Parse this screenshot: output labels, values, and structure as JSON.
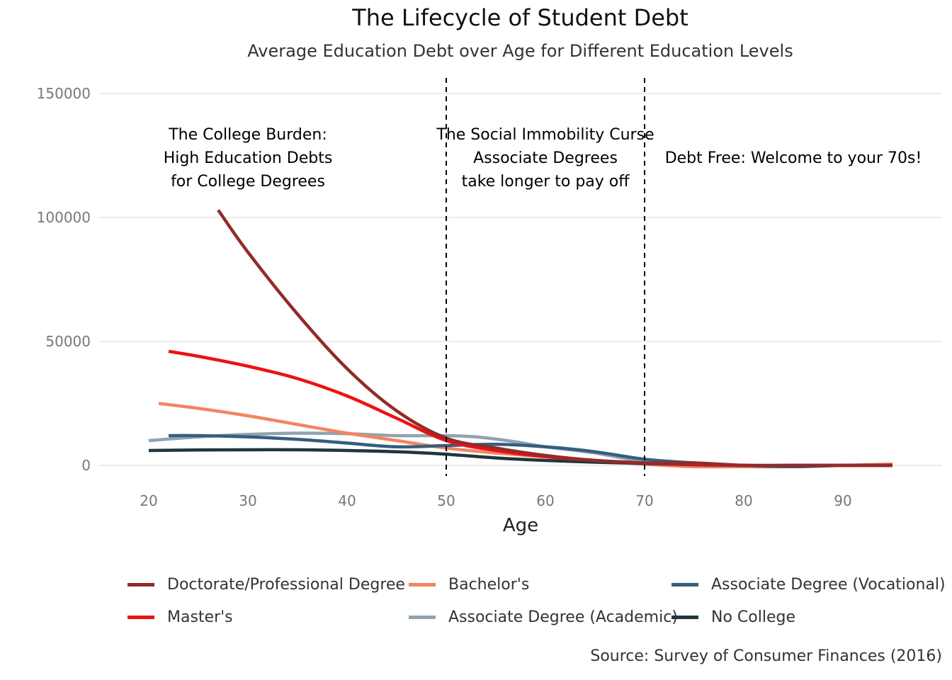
{
  "chart_data": {
    "type": "line",
    "title": "The Lifecycle of Student Debt",
    "subtitle": "Average Education Debt over Age for Different Education Levels",
    "xlabel": "Age",
    "ylabel": "",
    "xlim": [
      15,
      100
    ],
    "ylim": [
      0,
      150000
    ],
    "xticks": [
      20,
      30,
      40,
      50,
      60,
      70,
      80,
      90
    ],
    "yticks": [
      0,
      50000,
      100000,
      150000
    ],
    "grid": true,
    "legend_position": "bottom",
    "vlines": [
      50,
      70
    ],
    "caption": "Source: Survey of Consumer Finances (2016)",
    "annotations": [
      {
        "x": 30,
        "y": 123000,
        "lines": [
          "The College Burden:",
          "High Education Debts",
          "for College Degrees"
        ]
      },
      {
        "x": 60,
        "y": 123000,
        "lines": [
          "The Social Immobility Curse",
          "Associate Degrees",
          "take longer to pay off"
        ]
      },
      {
        "x": 85,
        "y": 123000,
        "lines": [
          "Debt Free: Welcome to your 70s!"
        ]
      }
    ],
    "series": [
      {
        "name": "Doctorate/Professional Degree",
        "color": "#922B2B",
        "x": [
          27,
          30,
          35,
          40,
          45,
          50,
          55,
          60,
          65,
          70,
          75,
          80,
          85,
          90,
          95
        ],
        "y": [
          103000,
          86000,
          61000,
          39000,
          22000,
          11000,
          7000,
          4000,
          2000,
          1000,
          1000,
          0,
          0,
          0,
          0
        ]
      },
      {
        "name": "Master's",
        "color": "#EE1111",
        "x": [
          22,
          25,
          30,
          35,
          40,
          45,
          50,
          55,
          60,
          65,
          70,
          75,
          80,
          85,
          90,
          95
        ],
        "y": [
          46000,
          44000,
          40000,
          35000,
          28000,
          19000,
          10000,
          6000,
          3500,
          2000,
          1000,
          500,
          0,
          0,
          0,
          0
        ]
      },
      {
        "name": "Bachelor's",
        "color": "#F4845F",
        "x": [
          21,
          25,
          30,
          35,
          40,
          45,
          50,
          55,
          60,
          65,
          70,
          75,
          80,
          85,
          90,
          95
        ],
        "y": [
          25000,
          23000,
          20000,
          16500,
          13000,
          10000,
          7000,
          5000,
          3500,
          2000,
          500,
          -500,
          -500,
          -500,
          0,
          500
        ]
      },
      {
        "name": "Associate Degree (Academic)",
        "color": "#8FA3B0",
        "x": [
          20,
          25,
          30,
          35,
          40,
          45,
          50,
          53,
          57,
          60,
          65,
          70,
          75,
          80,
          85,
          90,
          95
        ],
        "y": [
          10000,
          11500,
          12500,
          13000,
          12800,
          12000,
          12000,
          11500,
          9500,
          7500,
          5000,
          1500,
          0,
          -500,
          -500,
          0,
          0
        ]
      },
      {
        "name": "Associate Degree (Vocational)",
        "color": "#355E7E",
        "x": [
          22,
          25,
          30,
          35,
          40,
          45,
          50,
          55,
          60,
          65,
          70,
          75,
          80,
          85,
          90,
          95
        ],
        "y": [
          12000,
          12000,
          11500,
          10500,
          9000,
          7500,
          8000,
          8500,
          7500,
          5500,
          2500,
          1000,
          0,
          -500,
          0,
          0
        ]
      },
      {
        "name": "No College",
        "color": "#20363D",
        "x": [
          20,
          25,
          30,
          35,
          40,
          45,
          50,
          55,
          60,
          65,
          70,
          75,
          80,
          85,
          90,
          95
        ],
        "y": [
          6000,
          6200,
          6300,
          6300,
          6000,
          5500,
          4500,
          3000,
          2000,
          1300,
          800,
          300,
          0,
          0,
          0,
          0
        ]
      }
    ]
  }
}
